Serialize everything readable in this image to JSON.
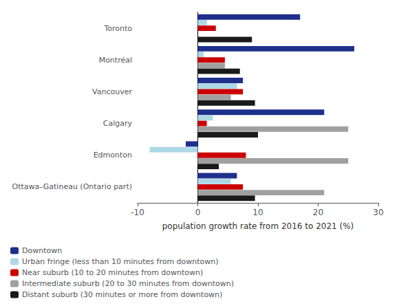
{
  "chart_data": {
    "type": "bar",
    "orientation": "horizontal",
    "categories": [
      "Toronto",
      "Montréal",
      "Vancouver",
      "Calgary",
      "Edmonton",
      "Ottawa–Gatineau (Ontario part)"
    ],
    "series": [
      {
        "name": "Downtown",
        "color": "#1f2f8c",
        "values": [
          17.0,
          26.0,
          7.5,
          21.0,
          -2.0,
          6.5
        ]
      },
      {
        "name": "Urban fringe (less than 10 minutes from downtown)",
        "color": "#add8e6",
        "values": [
          1.5,
          1.0,
          6.5,
          2.5,
          -8.0,
          5.5
        ]
      },
      {
        "name": "Near suburb (10 to 20 minutes from downtown)",
        "color": "#cc0000",
        "values": [
          3.0,
          4.5,
          7.5,
          1.5,
          8.0,
          7.5
        ]
      },
      {
        "name": "Intermediate suburb (20 to 30 minutes from downtown)",
        "color": "#a0a0a0",
        "values": [
          null,
          4.5,
          5.5,
          25.0,
          25.0,
          21.0
        ]
      },
      {
        "name": "Distant suburb (30 minutes or more from downtown)",
        "color": "#1a1a1a",
        "values": [
          9.0,
          7.0,
          9.5,
          10.0,
          3.5,
          9.5
        ]
      }
    ],
    "xlabel": "population growth rate from 2016 to 2021 (%)",
    "xlim": [
      -10,
      30
    ],
    "xticks": [
      -10,
      0,
      10,
      20,
      30
    ],
    "grid": false,
    "legend": "bottom"
  }
}
